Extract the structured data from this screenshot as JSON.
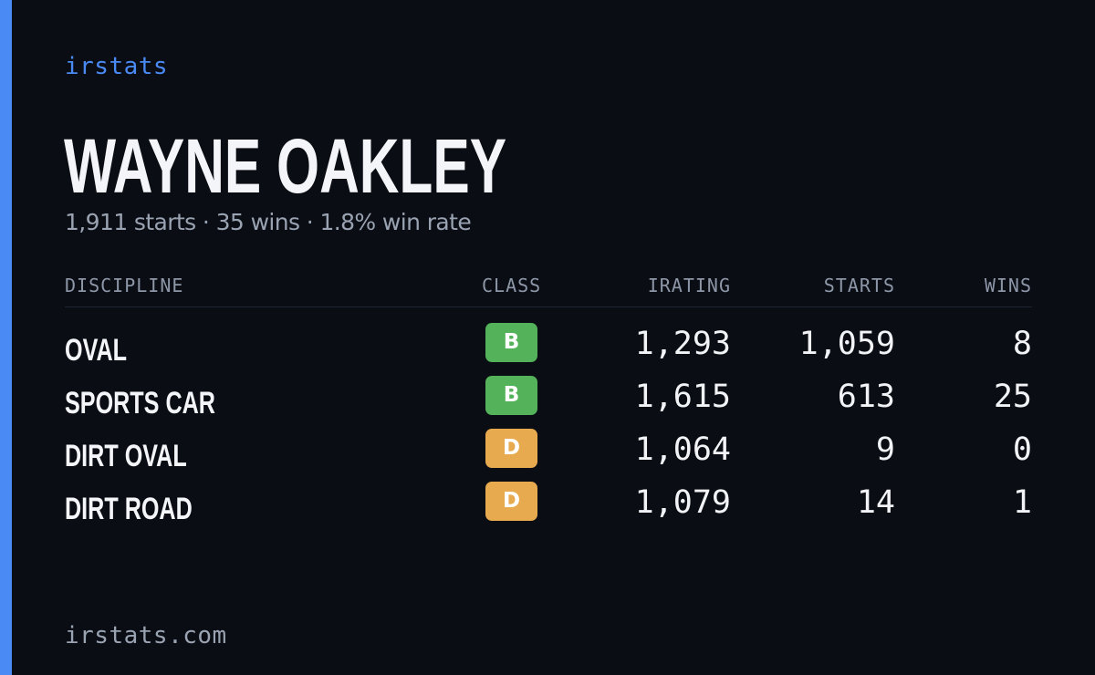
{
  "brand": {
    "name": "irstats",
    "color": "#4a8af4"
  },
  "profile": {
    "name": "WAYNE OAKLEY",
    "summary": "1,911 starts · 35 wins · 1.8% win rate"
  },
  "table": {
    "headers": {
      "discipline": "DISCIPLINE",
      "class": "CLASS",
      "irating": "IRATING",
      "starts": "STARTS",
      "wins": "WINS"
    },
    "rows": [
      {
        "discipline": "OVAL",
        "class": "B",
        "irating": "1,293",
        "starts": "1,059",
        "wins": "8"
      },
      {
        "discipline": "SPORTS CAR",
        "class": "B",
        "irating": "1,615",
        "starts": "613",
        "wins": "25"
      },
      {
        "discipline": "DIRT OVAL",
        "class": "D",
        "irating": "1,064",
        "starts": "9",
        "wins": "0"
      },
      {
        "discipline": "DIRT ROAD",
        "class": "D",
        "irating": "1,079",
        "starts": "14",
        "wins": "1"
      }
    ]
  },
  "class_colors": {
    "B": "#54b35a",
    "D": "#e8aa4e"
  },
  "footer": {
    "url": "irstats.com"
  }
}
